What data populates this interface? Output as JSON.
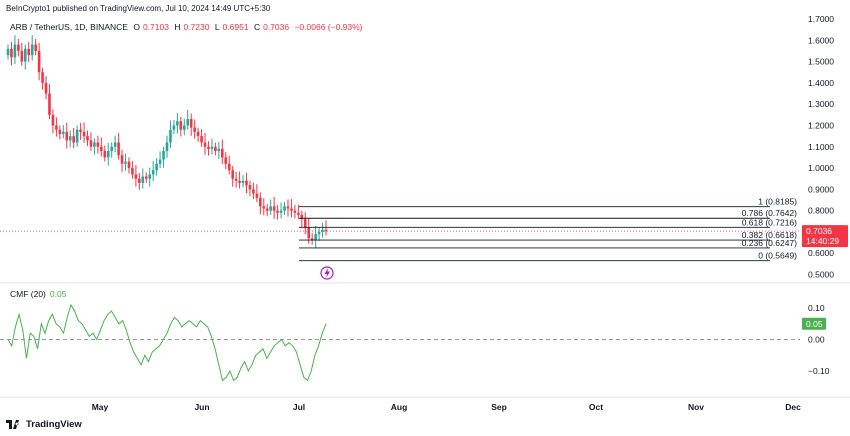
{
  "header": {
    "published": "BeInCrypto1 published on TradingView.com, Jul 10, 2024 14:49 UTC+5:30"
  },
  "legend": {
    "symbol": "ARB / TetherUS, 1D, BINANCE",
    "o_label": "O",
    "o": "0.7103",
    "h_label": "H",
    "h": "0.7230",
    "l_label": "L",
    "l": "0.6951",
    "c_label": "C",
    "c": "0.7036",
    "change": "−0.0066 (−0.93%)"
  },
  "cmf_legend": {
    "label": "CMF (20)",
    "value": "0.05"
  },
  "footer": {
    "brand": "TradingView"
  },
  "price_badge": {
    "price": "0.7036",
    "countdown": "14:40:29"
  },
  "cmf_badge": {
    "value": "0.05"
  },
  "colors": {
    "up": "#26a69a",
    "down": "#f23645",
    "cmf": "#4caf50",
    "fib": "#131722"
  },
  "chart_data": [
    {
      "type": "candlestick",
      "title": "ARB / TetherUS, 1D, BINANCE",
      "ylim": [
        0.46,
        1.73
      ],
      "y_ticks": [
        "1.7000",
        "1.6000",
        "1.5000",
        "1.4000",
        "1.3000",
        "1.2000",
        "1.1000",
        "1.0000",
        "0.9000",
        "0.8000",
        "0.7000",
        "0.6000",
        "0.5000"
      ],
      "x_ticks": [
        "May",
        "Jun",
        "Jul",
        "Aug",
        "Sep",
        "Oct",
        "Nov",
        "Dec"
      ],
      "last_price": 0.7036,
      "close_series": [
        1.56,
        1.52,
        1.58,
        1.55,
        1.5,
        1.56,
        1.53,
        1.58,
        1.55,
        1.45,
        1.4,
        1.35,
        1.25,
        1.2,
        1.18,
        1.16,
        1.17,
        1.13,
        1.15,
        1.12,
        1.18,
        1.17,
        1.15,
        1.13,
        1.1,
        1.12,
        1.1,
        1.08,
        1.05,
        1.08,
        1.1,
        1.12,
        1.06,
        1.02,
        1.03,
        1.0,
        0.97,
        0.95,
        0.93,
        0.96,
        0.95,
        0.97,
        0.99,
        1.02,
        1.04,
        1.08,
        1.12,
        1.18,
        1.2,
        1.22,
        1.18,
        1.2,
        1.23,
        1.19,
        1.17,
        1.15,
        1.12,
        1.1,
        1.09,
        1.1,
        1.08,
        1.09,
        1.05,
        1.02,
        0.99,
        0.95,
        0.94,
        0.93,
        0.94,
        0.92,
        0.9,
        0.88,
        0.86,
        0.82,
        0.81,
        0.8,
        0.82,
        0.8,
        0.79,
        0.8,
        0.82,
        0.81,
        0.8,
        0.79,
        0.78,
        0.76,
        0.72,
        0.67,
        0.66,
        0.69,
        0.7,
        0.71,
        0.7036
      ],
      "fib_levels": [
        {
          "label": "1 (0.8185)",
          "value": 0.8185
        },
        {
          "label": "0.786 (0.7642)",
          "value": 0.7642
        },
        {
          "label": "0.618 (0.7216)",
          "value": 0.7216
        },
        {
          "label": "0.382 (0.6618)",
          "value": 0.6618
        },
        {
          "label": "0.236 (0.6247)",
          "value": 0.6247
        },
        {
          "label": "0 (0.5649)",
          "value": 0.5649
        }
      ]
    },
    {
      "type": "line",
      "title": "CMF (20)",
      "ylim": [
        -0.17,
        0.13
      ],
      "y_ticks": [
        "0.10",
        "0.00",
        "−0.10"
      ],
      "baseline": 0,
      "series": [
        {
          "name": "CMF (20)",
          "values": [
            0.0,
            -0.02,
            0.04,
            0.08,
            0.03,
            -0.06,
            0.02,
            0.01,
            -0.03,
            0.05,
            0.02,
            0.06,
            0.08,
            0.05,
            0.04,
            0.02,
            0.07,
            0.11,
            0.09,
            0.06,
            0.05,
            0.03,
            0.01,
            0.02,
            0.0,
            0.03,
            0.06,
            0.08,
            0.09,
            0.07,
            0.05,
            0.06,
            0.03,
            -0.01,
            -0.04,
            -0.06,
            -0.08,
            -0.05,
            -0.07,
            -0.04,
            -0.03,
            -0.02,
            0.0,
            0.02,
            0.05,
            0.07,
            0.06,
            0.04,
            0.05,
            0.06,
            0.05,
            0.04,
            0.06,
            0.05,
            0.04,
            0.01,
            -0.03,
            -0.08,
            -0.13,
            -0.12,
            -0.1,
            -0.13,
            -0.12,
            -0.09,
            -0.07,
            -0.1,
            -0.08,
            -0.05,
            -0.04,
            -0.03,
            -0.06,
            -0.04,
            -0.02,
            -0.01,
            0.0,
            -0.02,
            -0.01,
            -0.02,
            -0.04,
            -0.08,
            -0.12,
            -0.13,
            -0.1,
            -0.05,
            -0.02,
            0.02,
            0.05
          ]
        }
      ]
    }
  ]
}
